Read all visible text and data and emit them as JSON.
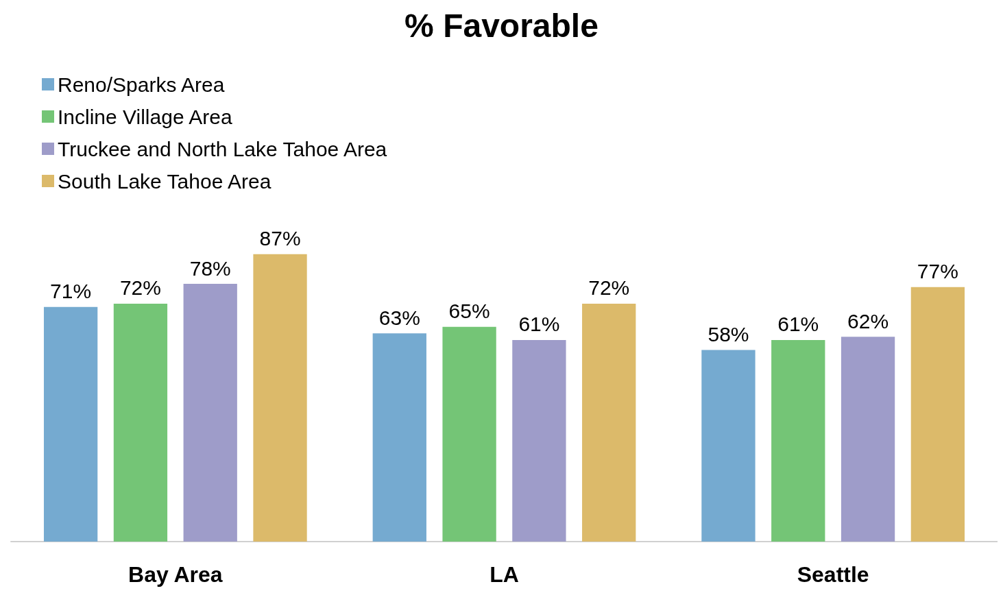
{
  "chart_data": {
    "type": "bar",
    "title": "% Favorable",
    "categories": [
      "Bay Area",
      "LA",
      "Seattle"
    ],
    "series": [
      {
        "name": "Reno/Sparks Area",
        "color": "#75aad0",
        "values": [
          71,
          63,
          58
        ],
        "value_labels": [
          "71%",
          "63%",
          "58%"
        ]
      },
      {
        "name": "Incline Village Area",
        "color": "#74c576",
        "values": [
          72,
          65,
          61
        ],
        "value_labels": [
          "72%",
          "65%",
          "61%"
        ]
      },
      {
        "name": "Truckee and North Lake Tahoe Area",
        "color": "#9e9cc9",
        "values": [
          78,
          61,
          62
        ],
        "value_labels": [
          "78%",
          "61%",
          "62%"
        ]
      },
      {
        "name": "South Lake Tahoe Area",
        "color": "#dcba6a",
        "values": [
          87,
          72,
          77
        ],
        "value_labels": [
          "87%",
          "72%",
          "77%"
        ]
      }
    ],
    "legend": "top left",
    "grid": false,
    "tick_labels": "x"
  }
}
